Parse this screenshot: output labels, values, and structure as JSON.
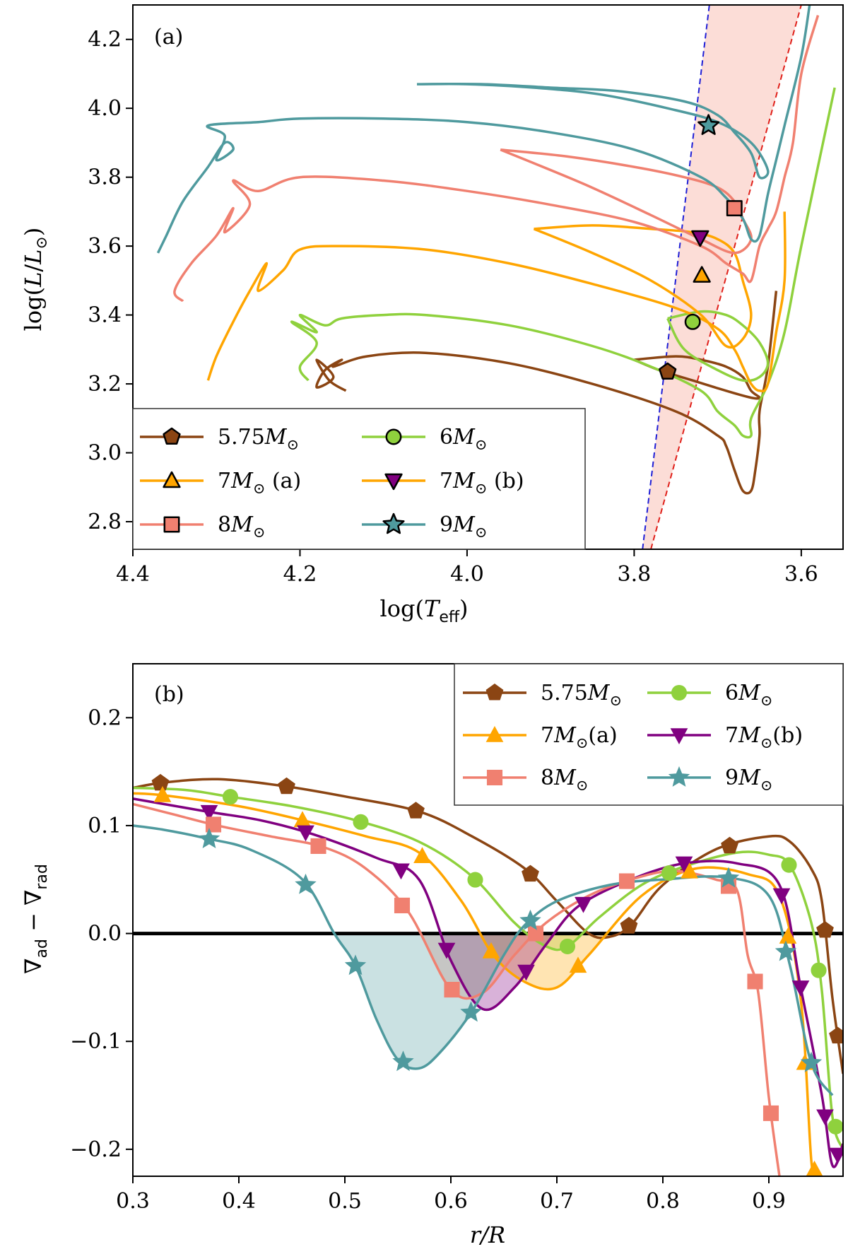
{
  "chart_data": [
    {
      "type": "line",
      "panel": "(a)",
      "xlabel": "log(T_eff)",
      "ylabel": "log(L/L⊙)",
      "xlim": [
        4.4,
        3.55
      ],
      "ylim": [
        2.72,
        4.3
      ],
      "xticks": [
        4.4,
        4.2,
        4.0,
        3.8,
        3.6
      ],
      "xtick_labels": [
        "4.4",
        "4.2",
        "4.0",
        "3.8",
        "3.6"
      ],
      "yticks": [
        2.8,
        3.0,
        3.2,
        3.4,
        3.6,
        3.8,
        4.0,
        4.2
      ],
      "ytick_labels": [
        "2.8",
        "3.0",
        "3.2",
        "3.4",
        "3.6",
        "3.8",
        "4.0",
        "4.2"
      ],
      "instability_strip": {
        "blue_edge": [
          [
            3.79,
            2.72
          ],
          [
            3.71,
            4.3
          ]
        ],
        "red_edge": [
          [
            3.78,
            2.72
          ],
          [
            3.6,
            4.3
          ]
        ],
        "fill": "#fcd9d3",
        "blue_color": "#1f1fd6",
        "red_color": "#e0201a"
      },
      "legend_location": "lower-left",
      "series": [
        {
          "name": "5.75M⊙",
          "label_main": "5.75",
          "label_suffix": "M⊙",
          "label_extra": "",
          "color": "#8b4513",
          "marker": "pentagon",
          "x": [
            4.145,
            4.165,
            4.18,
            4.16,
            4.18,
            4.17,
            4.15,
            4.16,
            4.12,
            4.05,
            3.95,
            3.85,
            3.75,
            3.7,
            3.69,
            3.68,
            3.67,
            3.66,
            3.655,
            3.65,
            3.65,
            3.64,
            3.63
          ],
          "y": [
            3.18,
            3.21,
            3.27,
            3.22,
            3.19,
            3.24,
            3.27,
            3.25,
            3.28,
            3.29,
            3.26,
            3.2,
            3.12,
            3.05,
            3.02,
            2.95,
            2.89,
            2.89,
            2.95,
            3.05,
            3.12,
            3.25,
            3.47
          ],
          "loop_x": [
            3.8,
            3.75,
            3.72,
            3.69,
            3.67,
            3.66,
            3.65,
            3.66,
            3.69,
            3.73,
            3.77,
            3.8
          ],
          "loop_y": [
            3.27,
            3.28,
            3.27,
            3.25,
            3.22,
            3.18,
            3.16,
            3.16,
            3.18,
            3.21,
            3.24,
            3.27
          ],
          "marker_point": [
            3.76,
            3.235
          ]
        },
        {
          "name": "6M⊙",
          "label_main": "6",
          "label_suffix": "M⊙",
          "label_extra": "",
          "color": "#8fd13d",
          "marker": "circle",
          "x": [
            4.19,
            4.2,
            4.18,
            4.21,
            4.18,
            4.2,
            4.17,
            4.15,
            4.1,
            4.05,
            3.95,
            3.85,
            3.78,
            3.72,
            3.7,
            3.68,
            3.67,
            3.66,
            3.66,
            3.64,
            3.62,
            3.6,
            3.56
          ],
          "y": [
            3.21,
            3.25,
            3.32,
            3.38,
            3.35,
            3.4,
            3.37,
            3.39,
            3.4,
            3.4,
            3.37,
            3.31,
            3.25,
            3.18,
            3.12,
            3.08,
            3.05,
            3.05,
            3.1,
            3.2,
            3.35,
            3.6,
            4.06
          ],
          "loop_x": [
            3.76,
            3.72,
            3.69,
            3.67,
            3.65,
            3.64,
            3.65,
            3.67,
            3.7,
            3.74,
            3.76
          ],
          "loop_y": [
            3.39,
            3.41,
            3.4,
            3.37,
            3.32,
            3.26,
            3.22,
            3.21,
            3.24,
            3.3,
            3.39
          ],
          "marker_point": [
            3.73,
            3.38
          ]
        },
        {
          "name": "7M⊙ (a)",
          "label_main": "7",
          "label_suffix": "M⊙",
          "label_extra": " (a)",
          "color": "#ffa500",
          "marker": "triangle-up",
          "x": [
            4.31,
            4.3,
            4.28,
            4.26,
            4.24,
            4.25,
            4.22,
            4.2,
            4.15,
            4.05,
            3.95,
            3.85,
            3.75,
            3.7,
            3.68,
            3.67,
            3.66,
            3.65,
            3.64,
            3.63,
            3.62,
            3.62
          ],
          "y": [
            3.21,
            3.28,
            3.38,
            3.47,
            3.55,
            3.47,
            3.53,
            3.59,
            3.6,
            3.59,
            3.55,
            3.49,
            3.42,
            3.36,
            3.3,
            3.25,
            3.2,
            3.18,
            3.2,
            3.35,
            3.5,
            3.7
          ],
          "loop_x": [
            3.92,
            3.85,
            3.78,
            3.73,
            3.7,
            3.68,
            3.67,
            3.66,
            3.67,
            3.69,
            3.72,
            3.78,
            3.85,
            3.92
          ],
          "loop_y": [
            3.65,
            3.66,
            3.65,
            3.64,
            3.62,
            3.58,
            3.5,
            3.4,
            3.33,
            3.31,
            3.4,
            3.5,
            3.58,
            3.65
          ],
          "marker_point": [
            3.719,
            3.515
          ]
        },
        {
          "name": "7M⊙ (b)",
          "label_main": "7",
          "label_suffix": "M⊙",
          "label_extra": " (b)",
          "color": "#ffa500",
          "marker": "triangle-down",
          "marker_face": "#800080",
          "x": [],
          "y": [],
          "loop_x": [],
          "loop_y": [],
          "marker_point": [
            3.721,
            3.625
          ]
        },
        {
          "name": "8M⊙",
          "label_main": "8",
          "label_suffix": "M⊙",
          "label_extra": "",
          "color": "#f08070",
          "marker": "square",
          "x": [
            4.34,
            4.35,
            4.33,
            4.3,
            4.28,
            4.29,
            4.26,
            4.28,
            4.25,
            4.2,
            4.1,
            4.0,
            3.9,
            3.8,
            3.72,
            3.69,
            3.67,
            3.66,
            3.65,
            3.64,
            3.63,
            3.62,
            3.61,
            3.6,
            3.58
          ],
          "y": [
            3.44,
            3.47,
            3.55,
            3.63,
            3.71,
            3.64,
            3.72,
            3.79,
            3.76,
            3.8,
            3.79,
            3.76,
            3.72,
            3.67,
            3.6,
            3.55,
            3.52,
            3.5,
            3.6,
            3.65,
            3.7,
            3.8,
            3.9,
            4.1,
            4.27
          ],
          "loop_x": [
            3.96,
            3.88,
            3.8,
            3.74,
            3.7,
            3.68,
            3.67,
            3.66,
            3.68,
            3.72,
            3.78,
            3.86,
            3.96
          ],
          "loop_y": [
            3.88,
            3.86,
            3.83,
            3.8,
            3.77,
            3.73,
            3.68,
            3.62,
            3.58,
            3.62,
            3.69,
            3.78,
            3.88
          ],
          "marker_point": [
            3.68,
            3.71
          ]
        },
        {
          "name": "9M⊙",
          "label_main": "9",
          "label_suffix": "M⊙",
          "label_extra": "",
          "color": "#4f9a9e",
          "marker": "star",
          "x": [
            4.37,
            4.36,
            4.34,
            4.31,
            4.29,
            4.28,
            4.3,
            4.29,
            4.31,
            4.25,
            4.2,
            4.1,
            4.0,
            3.9,
            3.8,
            3.72,
            3.69,
            3.67,
            3.66,
            3.65,
            3.64,
            3.63,
            3.62,
            3.6,
            3.59
          ],
          "y": [
            3.58,
            3.63,
            3.73,
            3.83,
            3.9,
            3.88,
            3.85,
            3.92,
            3.95,
            3.96,
            3.97,
            3.97,
            3.96,
            3.93,
            3.88,
            3.8,
            3.74,
            3.68,
            3.62,
            3.63,
            3.75,
            3.85,
            3.95,
            4.15,
            4.3
          ],
          "loop_x": [
            4.06,
            3.98,
            3.9,
            3.82,
            3.74,
            3.7,
            3.68,
            3.66,
            3.65,
            3.64,
            3.66,
            3.7,
            3.76,
            3.84,
            3.92,
            4.0,
            4.06
          ],
          "loop_y": [
            4.07,
            4.07,
            4.06,
            4.05,
            4.02,
            3.98,
            3.93,
            3.87,
            3.8,
            3.82,
            3.9,
            3.96,
            4.0,
            4.04,
            4.06,
            4.07,
            4.07
          ],
          "marker_point": [
            3.711,
            3.95
          ]
        }
      ]
    },
    {
      "type": "line",
      "panel": "(b)",
      "xlabel": "r/R",
      "ylabel": "∇ad − ∇rad",
      "xlim": [
        0.3,
        0.97
      ],
      "ylim": [
        -0.225,
        0.25
      ],
      "xticks": [
        0.3,
        0.4,
        0.5,
        0.6,
        0.7,
        0.8,
        0.9
      ],
      "xtick_labels": [
        "0.3",
        "0.4",
        "0.5",
        "0.6",
        "0.7",
        "0.8",
        "0.9"
      ],
      "yticks": [
        -0.2,
        -0.1,
        0.0,
        0.1,
        0.2
      ],
      "ytick_labels": [
        "−0.2",
        "−0.1",
        "0.0",
        "0.1",
        "0.2"
      ],
      "zero_line": 0.0,
      "legend_location": "top-right",
      "series": [
        {
          "name": "5.75M⊙",
          "label_main": "5.75",
          "label_suffix": "M⊙",
          "label_extra": "",
          "color": "#8b4513",
          "marker": "pentagon",
          "x": [
            0.3,
            0.33,
            0.38,
            0.44,
            0.5,
            0.57,
            0.62,
            0.67,
            0.7,
            0.73,
            0.75,
            0.77,
            0.8,
            0.85,
            0.9,
            0.92,
            0.94,
            0.95,
            0.96,
            0.97
          ],
          "y": [
            0.135,
            0.14,
            0.143,
            0.137,
            0.127,
            0.113,
            0.09,
            0.06,
            0.03,
            0.0,
            -0.003,
            0.008,
            0.045,
            0.078,
            0.09,
            0.085,
            0.06,
            0.03,
            -0.06,
            -0.13
          ],
          "markers_x": [
            0.326,
            0.445,
            0.567,
            0.675,
            0.768,
            0.863,
            0.953,
            0.965
          ]
        },
        {
          "name": "6M⊙",
          "label_main": "6",
          "label_suffix": "M⊙",
          "label_extra": "",
          "color": "#8fd13d",
          "marker": "circle",
          "x": [
            0.3,
            0.35,
            0.39,
            0.45,
            0.51,
            0.57,
            0.62,
            0.66,
            0.69,
            0.71,
            0.74,
            0.78,
            0.82,
            0.87,
            0.9,
            0.92,
            0.94,
            0.95,
            0.96,
            0.97
          ],
          "y": [
            0.135,
            0.133,
            0.127,
            0.118,
            0.105,
            0.085,
            0.053,
            0.01,
            -0.012,
            -0.012,
            0.015,
            0.045,
            0.062,
            0.075,
            0.073,
            0.063,
            0.01,
            -0.053,
            -0.17,
            -0.2
          ],
          "markers_x": [
            0.392,
            0.515,
            0.623,
            0.71,
            0.806,
            0.919,
            0.947,
            0.963
          ]
        },
        {
          "name": "7M⊙(a)",
          "label_main": "7",
          "label_suffix": "M⊙",
          "label_extra": "(a)",
          "color": "#ffa500",
          "marker": "triangle-up",
          "x": [
            0.3,
            0.33,
            0.4,
            0.46,
            0.52,
            0.57,
            0.61,
            0.64,
            0.67,
            0.7,
            0.73,
            0.78,
            0.83,
            0.88,
            0.91,
            0.93,
            0.94,
            0.945
          ],
          "y": [
            0.13,
            0.128,
            0.118,
            0.105,
            0.09,
            0.075,
            0.03,
            -0.02,
            -0.045,
            -0.05,
            -0.02,
            0.035,
            0.06,
            0.055,
            0.035,
            -0.06,
            -0.21,
            -0.225
          ],
          "markers_x": [
            0.328,
            0.46,
            0.573,
            0.638,
            0.72,
            0.825,
            0.918,
            0.934,
            0.943
          ]
        },
        {
          "name": "7M⊙(b)",
          "label_main": "7",
          "label_suffix": "M⊙",
          "label_extra": "(b)",
          "color": "#800080",
          "marker": "triangle-down",
          "x": [
            0.3,
            0.37,
            0.42,
            0.47,
            0.53,
            0.57,
            0.6,
            0.63,
            0.66,
            0.69,
            0.72,
            0.77,
            0.82,
            0.87,
            0.91,
            0.93,
            0.95,
            0.96,
            0.97
          ],
          "y": [
            0.125,
            0.113,
            0.105,
            0.092,
            0.07,
            0.05,
            -0.025,
            -0.07,
            -0.05,
            -0.01,
            0.025,
            0.05,
            0.065,
            0.065,
            0.045,
            -0.05,
            -0.15,
            -0.215,
            -0.195
          ],
          "markers_x": [
            0.372,
            0.463,
            0.553,
            0.596,
            0.671,
            0.725,
            0.82,
            0.912,
            0.93,
            0.953,
            0.965
          ]
        },
        {
          "name": "8M⊙",
          "label_main": "8",
          "label_suffix": "M⊙",
          "label_extra": "",
          "color": "#f08070",
          "marker": "square",
          "x": [
            0.3,
            0.34,
            0.38,
            0.43,
            0.48,
            0.52,
            0.56,
            0.6,
            0.63,
            0.66,
            0.69,
            0.73,
            0.77,
            0.81,
            0.85,
            0.87,
            0.88,
            0.89,
            0.9,
            0.91
          ],
          "y": [
            0.12,
            0.11,
            0.1,
            0.09,
            0.08,
            0.06,
            0.02,
            -0.052,
            -0.055,
            -0.02,
            0.01,
            0.035,
            0.05,
            0.058,
            0.05,
            0.04,
            -0.02,
            -0.055,
            -0.152,
            -0.225
          ],
          "markers_x": [
            0.376,
            0.475,
            0.554,
            0.601,
            0.68,
            0.766,
            0.862,
            0.887,
            0.902
          ]
        },
        {
          "name": "9M⊙",
          "label_main": "9",
          "label_suffix": "M⊙",
          "label_extra": "",
          "color": "#4f9a9e",
          "marker": "star",
          "x": [
            0.3,
            0.33,
            0.37,
            0.41,
            0.46,
            0.49,
            0.51,
            0.53,
            0.55,
            0.57,
            0.59,
            0.62,
            0.65,
            0.67,
            0.7,
            0.75,
            0.8,
            0.86,
            0.9,
            0.92,
            0.94,
            0.96
          ],
          "y": [
            0.1,
            0.096,
            0.088,
            0.078,
            0.05,
            0.0,
            -0.03,
            -0.08,
            -0.117,
            -0.125,
            -0.11,
            -0.072,
            -0.02,
            0.008,
            0.03,
            0.045,
            0.05,
            0.052,
            0.035,
            -0.03,
            -0.12,
            -0.15
          ],
          "markers_x": [
            0.372,
            0.463,
            0.51,
            0.555,
            0.619,
            0.675,
            0.862,
            0.916,
            0.94
          ]
        }
      ]
    }
  ]
}
